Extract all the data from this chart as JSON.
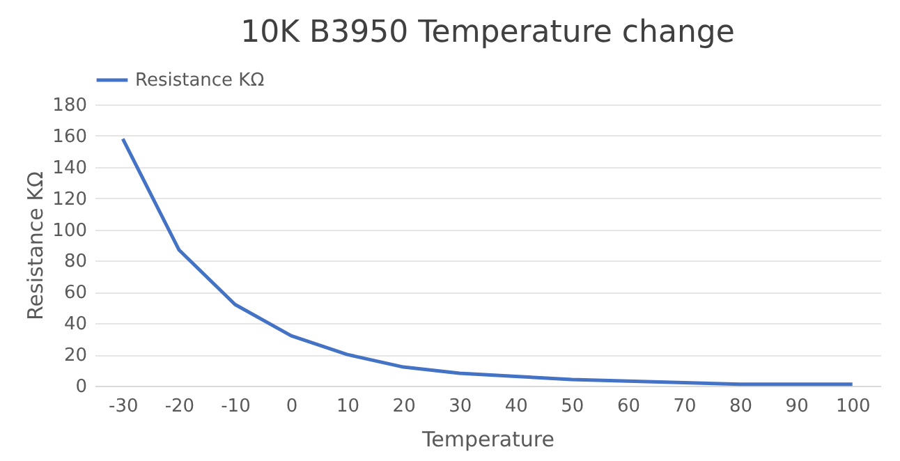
{
  "chart_data": {
    "type": "line",
    "title": "10K B3950 Temperature change",
    "xlabel": "Temperature",
    "ylabel": "Resistance KΩ",
    "categories": [
      "-30",
      "-20",
      "-10",
      "0",
      "10",
      "20",
      "30",
      "40",
      "50",
      "60",
      "70",
      "80",
      "90",
      "100"
    ],
    "series": [
      {
        "name": "Resistance KΩ",
        "color": "#4472c4",
        "values": [
          158,
          87,
          52,
          32,
          20,
          12,
          8,
          6,
          4,
          3,
          2,
          1,
          1,
          1
        ]
      }
    ],
    "ylim": [
      0,
      180
    ],
    "yticks": [
      0,
      20,
      40,
      60,
      80,
      100,
      120,
      140,
      160,
      180
    ],
    "grid": "y",
    "legend": "top",
    "marker": "none",
    "line_style": "solid"
  }
}
